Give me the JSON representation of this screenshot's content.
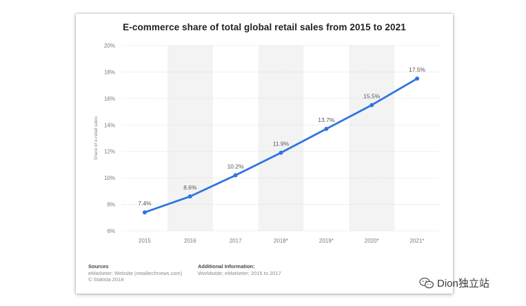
{
  "chart_data": {
    "type": "line",
    "title": "E-commerce share of total global retail sales from 2015 to 2021",
    "xlabel": "",
    "ylabel": "Share of e-retail sales",
    "categories": [
      "2015",
      "2016",
      "2017",
      "2018*",
      "2019*",
      "2020*",
      "2021*"
    ],
    "series": [
      {
        "name": "E-commerce share",
        "values": [
          7.4,
          8.6,
          10.2,
          11.9,
          13.7,
          15.5,
          17.5
        ],
        "labels": [
          "7.4%",
          "8.6%",
          "10.2%",
          "11.9%",
          "13.7%",
          "15.5%",
          "17.5%"
        ],
        "color": "#2f74e0"
      }
    ],
    "ylim": [
      6,
      20
    ],
    "yticks": [
      6,
      8,
      10,
      12,
      14,
      16,
      18,
      20
    ],
    "ytick_labels": [
      "6%",
      "8%",
      "10%",
      "12%",
      "14%",
      "16%",
      "18%",
      "20%"
    ],
    "grid": true
  },
  "footer": {
    "sources_heading": "Sources",
    "sources_line1": "eMarketer; Website (retailtechnews.com)",
    "sources_line2": "© Statista 2018",
    "info_heading": "Additional Information:",
    "info_line1": "Worldwide; eMarketer; 2015 to 2017"
  },
  "watermark": {
    "text": "Dion独立站",
    "icon": "wechat-bubbles-icon"
  },
  "colors": {
    "line": "#2f74e0",
    "band": "#f3f3f3",
    "grid": "#dcdcdc"
  }
}
